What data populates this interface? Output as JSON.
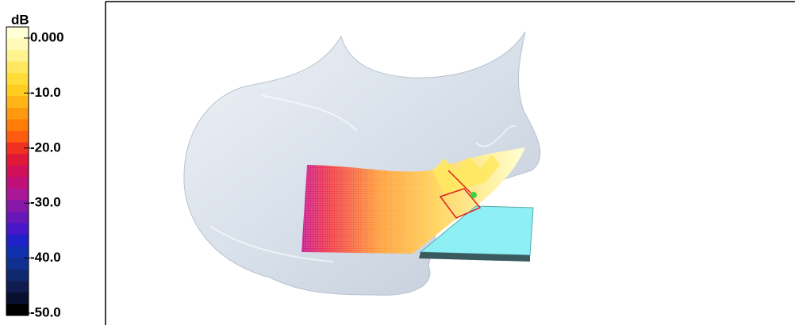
{
  "legend": {
    "unit": "dB",
    "labels": [
      "0.000",
      "-10.0",
      "-20.0",
      "-30.0",
      "-40.0",
      "-50.0"
    ]
  }
}
